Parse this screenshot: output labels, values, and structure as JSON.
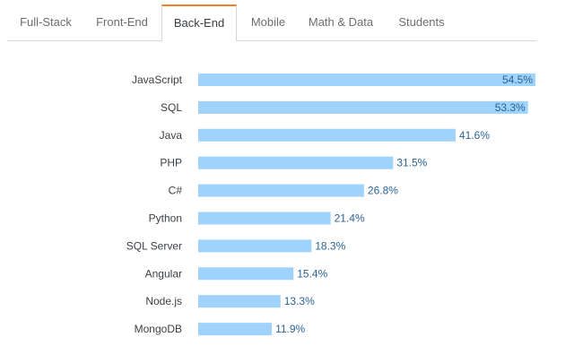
{
  "tabs": [
    {
      "label": "Full-Stack",
      "active": false
    },
    {
      "label": "Front-End",
      "active": false
    },
    {
      "label": "Back-End",
      "active": true
    },
    {
      "label": "Mobile",
      "active": false
    },
    {
      "label": "Math & Data",
      "active": false
    },
    {
      "label": "Students",
      "active": false
    }
  ],
  "colors": {
    "accent": "#f48024",
    "bar": "#9fd3fb",
    "value_text": "#2a6496"
  },
  "chart_data": {
    "type": "bar",
    "orientation": "horizontal",
    "categories": [
      "JavaScript",
      "SQL",
      "Java",
      "PHP",
      "C#",
      "Python",
      "SQL Server",
      "Angular",
      "Node.js",
      "MongoDB"
    ],
    "values": [
      54.5,
      53.3,
      41.6,
      31.5,
      26.8,
      21.4,
      18.3,
      15.4,
      13.3,
      11.9
    ],
    "value_labels": [
      "54.5%",
      "53.3%",
      "41.6%",
      "31.5%",
      "26.8%",
      "21.4%",
      "18.3%",
      "15.4%",
      "13.3%",
      "11.9%"
    ],
    "xlim": [
      0,
      54.5
    ],
    "grid": false,
    "legend": "none"
  }
}
